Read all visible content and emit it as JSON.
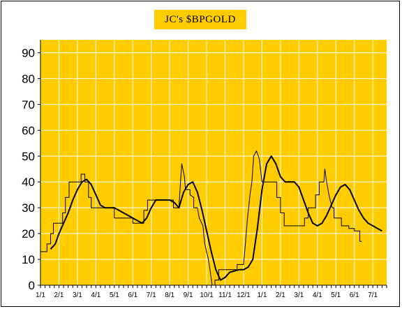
{
  "chart_data": {
    "type": "line",
    "title": "JC's $BPGOLD",
    "xlabel": "",
    "ylabel": "",
    "ylim": [
      0,
      95
    ],
    "yticks": [
      0,
      10,
      20,
      30,
      40,
      50,
      60,
      70,
      80,
      90
    ],
    "x_tick_labels": [
      "1/1",
      "2/1",
      "3/1",
      "4/1",
      "5/1",
      "6/1",
      "7/1",
      "8/1",
      "9/1",
      "10/1",
      "11/1",
      "12/1",
      "1/1",
      "2/1",
      "3/1",
      "4/1",
      "5/1",
      "6/1",
      "7/1"
    ],
    "x_unit": "month index from first 1/1",
    "grid": true,
    "legend": "none",
    "colors": {
      "plot_background": "#ffcc00",
      "gridline": "#ffffff",
      "series": "#000000"
    },
    "series": [
      {
        "style": "thin-step",
        "points": [
          [
            0.0,
            13
          ],
          [
            0.35,
            13
          ],
          [
            0.35,
            16
          ],
          [
            0.55,
            16
          ],
          [
            0.55,
            20
          ],
          [
            0.7,
            20
          ],
          [
            0.7,
            24
          ],
          [
            1.2,
            24
          ],
          [
            1.2,
            28
          ],
          [
            1.35,
            28
          ],
          [
            1.35,
            34
          ],
          [
            1.55,
            34
          ],
          [
            1.55,
            40
          ],
          [
            2.2,
            40
          ],
          [
            2.2,
            43
          ],
          [
            2.4,
            43
          ],
          [
            2.4,
            40
          ],
          [
            2.6,
            40
          ],
          [
            2.6,
            34
          ],
          [
            2.75,
            34
          ],
          [
            2.75,
            30
          ],
          [
            4.0,
            30
          ],
          [
            4.0,
            26
          ],
          [
            5.0,
            26
          ],
          [
            5.0,
            24
          ],
          [
            5.6,
            24
          ],
          [
            5.6,
            29
          ],
          [
            5.8,
            29
          ],
          [
            5.8,
            33
          ],
          [
            7.2,
            33
          ],
          [
            7.2,
            30
          ],
          [
            7.5,
            30
          ],
          [
            7.55,
            36
          ],
          [
            7.65,
            47
          ],
          [
            7.8,
            42
          ],
          [
            7.85,
            37
          ],
          [
            8.1,
            37
          ],
          [
            8.1,
            35
          ],
          [
            8.3,
            34
          ],
          [
            8.3,
            30
          ],
          [
            8.5,
            30
          ],
          [
            8.6,
            26
          ],
          [
            8.8,
            23
          ],
          [
            8.9,
            16
          ],
          [
            9.1,
            10
          ],
          [
            9.2,
            5
          ],
          [
            9.3,
            0
          ],
          [
            9.45,
            0
          ],
          [
            9.45,
            2
          ],
          [
            9.65,
            2
          ],
          [
            9.65,
            6
          ],
          [
            10.65,
            6
          ],
          [
            10.65,
            8
          ],
          [
            11.0,
            8
          ],
          [
            11.1,
            16
          ],
          [
            11.2,
            25
          ],
          [
            11.35,
            35
          ],
          [
            11.45,
            40
          ],
          [
            11.55,
            50
          ],
          [
            11.7,
            52
          ],
          [
            11.85,
            49
          ],
          [
            12.0,
            40
          ],
          [
            12.8,
            40
          ],
          [
            12.8,
            34
          ],
          [
            13.0,
            34
          ],
          [
            13.0,
            28
          ],
          [
            13.2,
            28
          ],
          [
            13.2,
            23
          ],
          [
            14.3,
            23
          ],
          [
            14.3,
            26
          ],
          [
            14.5,
            26
          ],
          [
            14.5,
            30
          ],
          [
            14.9,
            30
          ],
          [
            14.9,
            35
          ],
          [
            15.1,
            35
          ],
          [
            15.1,
            40
          ],
          [
            15.35,
            40
          ],
          [
            15.4,
            45
          ],
          [
            15.5,
            40
          ],
          [
            15.65,
            34
          ],
          [
            15.8,
            30
          ],
          [
            15.9,
            30
          ],
          [
            15.9,
            26
          ],
          [
            16.3,
            26
          ],
          [
            16.3,
            23
          ],
          [
            16.7,
            23
          ],
          [
            16.7,
            22
          ],
          [
            17.0,
            22
          ],
          [
            17.0,
            21
          ],
          [
            17.3,
            21
          ],
          [
            17.3,
            17
          ],
          [
            17.4,
            17
          ]
        ]
      },
      {
        "style": "thick-smooth",
        "points": [
          [
            0.55,
            14
          ],
          [
            0.8,
            16
          ],
          [
            1.0,
            20
          ],
          [
            1.25,
            24
          ],
          [
            1.5,
            28
          ],
          [
            1.75,
            33
          ],
          [
            2.0,
            37
          ],
          [
            2.25,
            40
          ],
          [
            2.5,
            41
          ],
          [
            2.75,
            39
          ],
          [
            3.0,
            35
          ],
          [
            3.25,
            31
          ],
          [
            3.5,
            30
          ],
          [
            4.0,
            30
          ],
          [
            4.5,
            28
          ],
          [
            5.0,
            26
          ],
          [
            5.5,
            24
          ],
          [
            5.75,
            26
          ],
          [
            6.0,
            30
          ],
          [
            6.25,
            33
          ],
          [
            6.5,
            33
          ],
          [
            7.0,
            33
          ],
          [
            7.25,
            32
          ],
          [
            7.5,
            30
          ],
          [
            7.75,
            36
          ],
          [
            8.0,
            39
          ],
          [
            8.25,
            40
          ],
          [
            8.5,
            36
          ],
          [
            8.75,
            29
          ],
          [
            9.0,
            21
          ],
          [
            9.25,
            13
          ],
          [
            9.5,
            6
          ],
          [
            9.75,
            2
          ],
          [
            10.0,
            3
          ],
          [
            10.25,
            5
          ],
          [
            10.75,
            6
          ],
          [
            11.0,
            6
          ],
          [
            11.25,
            7
          ],
          [
            11.5,
            10
          ],
          [
            11.75,
            22
          ],
          [
            12.0,
            37
          ],
          [
            12.25,
            47
          ],
          [
            12.5,
            50
          ],
          [
            12.75,
            47
          ],
          [
            13.0,
            42
          ],
          [
            13.25,
            40
          ],
          [
            13.75,
            40
          ],
          [
            14.0,
            38
          ],
          [
            14.25,
            33
          ],
          [
            14.5,
            28
          ],
          [
            14.75,
            24
          ],
          [
            15.0,
            23
          ],
          [
            15.25,
            24
          ],
          [
            15.5,
            27
          ],
          [
            15.75,
            31
          ],
          [
            16.0,
            35
          ],
          [
            16.25,
            38
          ],
          [
            16.5,
            39
          ],
          [
            16.75,
            37
          ],
          [
            17.0,
            33
          ],
          [
            17.25,
            29
          ],
          [
            17.5,
            26
          ],
          [
            17.75,
            24
          ],
          [
            18.0,
            23
          ],
          [
            18.25,
            22
          ],
          [
            18.5,
            21
          ]
        ]
      }
    ]
  }
}
